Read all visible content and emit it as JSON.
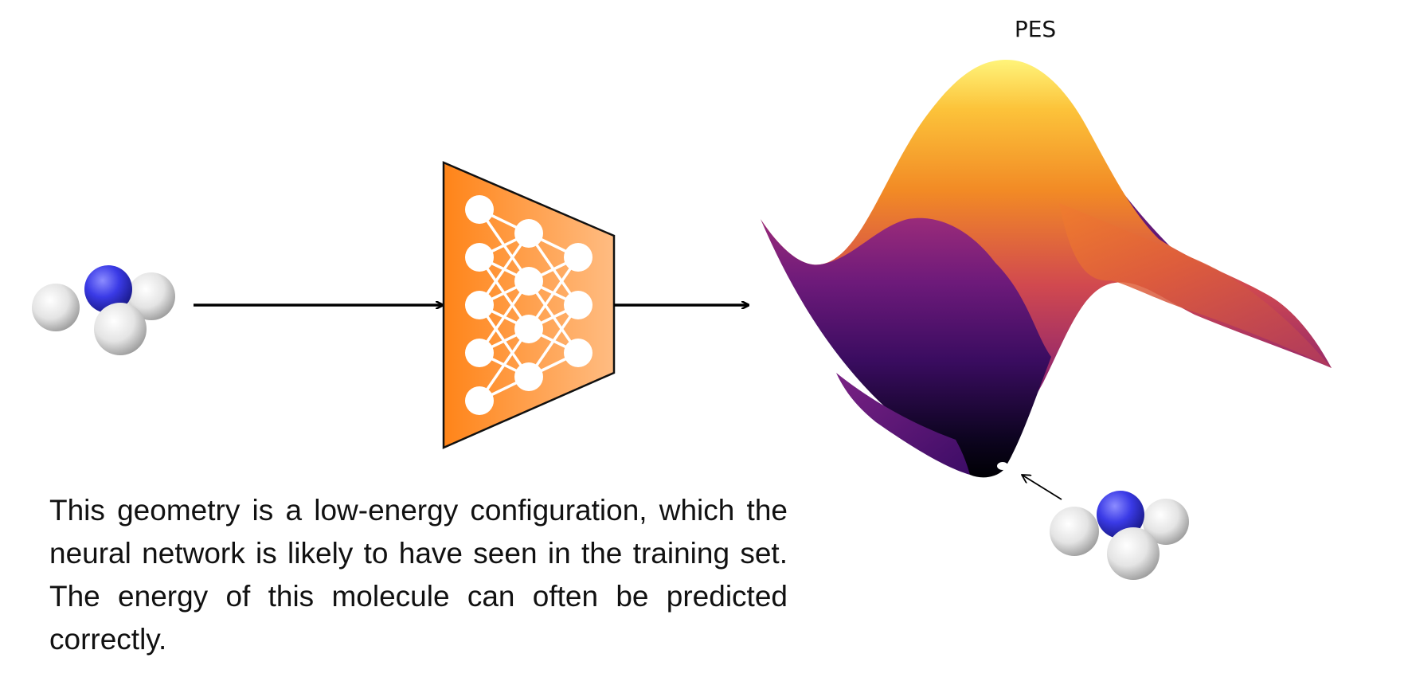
{
  "pes_title": "PES",
  "caption": "This geometry is a low-energy configuration, which the neural network is likely to have seen in the training set. The energy of this molecule can often be predicted correctly.",
  "colors": {
    "network_orange": "#FF8418",
    "network_light": "#FFB878",
    "nitrogen": "#3C3CE0",
    "hydrogen": "#E8E8E8",
    "surface_low": "#000004",
    "surface_mid": "#7C1D6F",
    "surface_high": "#FCFDBF"
  },
  "icons": [
    "ammonia-molecule-icon",
    "neural-network-icon",
    "potential-energy-surface",
    "minimum-marker"
  ]
}
